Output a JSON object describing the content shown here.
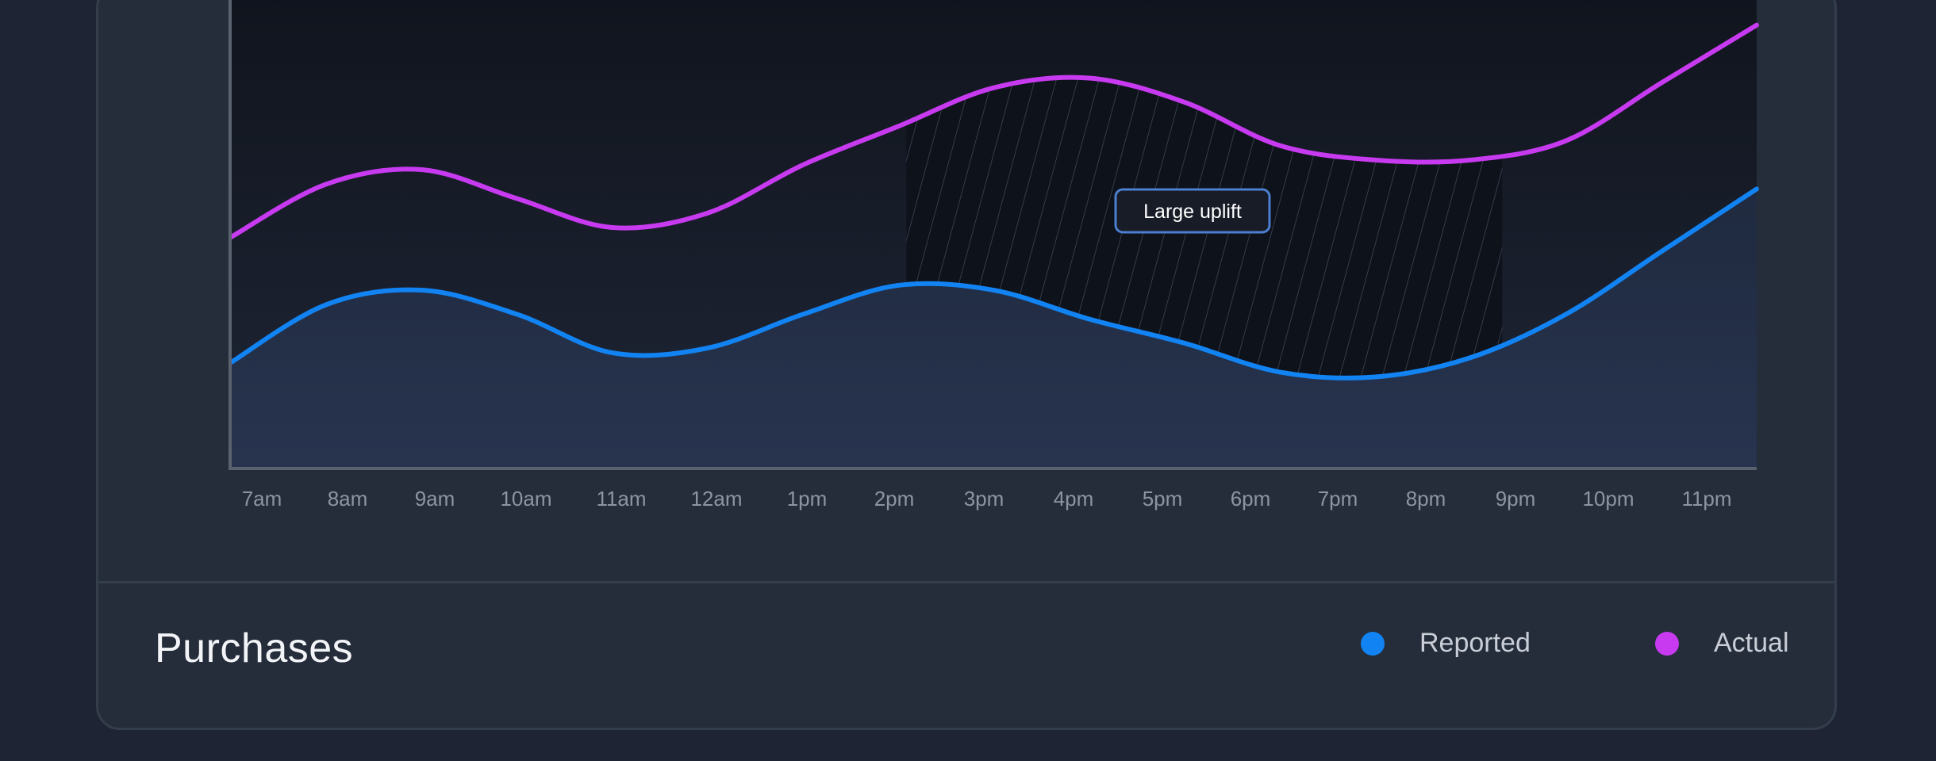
{
  "chart_data": {
    "type": "area",
    "categories": [
      "7am",
      "8am",
      "9am",
      "10am",
      "11am",
      "12am",
      "1pm",
      "2pm",
      "3pm",
      "4pm",
      "5pm",
      "6pm",
      "7pm",
      "8pm",
      "9pm",
      "10pm",
      "11pm"
    ],
    "series": [
      {
        "name": "Reported",
        "values": [
          22,
          34,
          37,
          32,
          24,
          25,
          32,
          38,
          37,
          31,
          26,
          20,
          19,
          23,
          32,
          45,
          58
        ],
        "color": "#1283f2"
      },
      {
        "name": "Actual",
        "values": [
          48,
          59,
          62,
          56,
          50,
          53,
          63,
          71,
          79,
          81,
          76,
          67,
          64,
          64,
          68,
          80,
          92
        ],
        "color": "#c73af0"
      }
    ],
    "annotation": {
      "label": "Large uplift",
      "x_range": [
        "2pm",
        "8pm"
      ]
    },
    "ylim": [
      0,
      100
    ],
    "title": "Purchases",
    "legend_position": "bottom-right"
  }
}
